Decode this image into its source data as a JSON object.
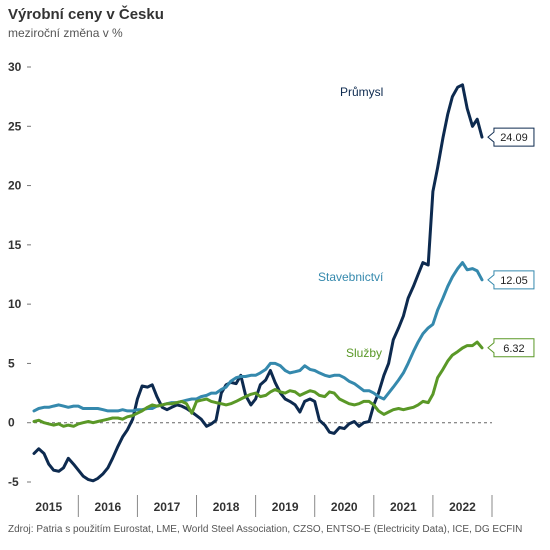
{
  "title": "Výrobní ceny v Česku",
  "subtitle": "meziroční změna v %",
  "source": "Zdroj: Patria s použitím Eurostat, LME, World Steel Association, CZSO, ENTSO-E (Electricity Data), ICE, DG ECFIN",
  "chart_data": {
    "type": "line",
    "title": "Výrobní ceny v Česku",
    "subtitle": "meziroční změna v %",
    "xlabel": "",
    "ylabel": "",
    "x_range": [
      2014.75,
      2022.5
    ],
    "ylim": [
      -5,
      30
    ],
    "y_ticks": [
      -5,
      0,
      5,
      10,
      15,
      20,
      25,
      30
    ],
    "x_ticks": [
      {
        "label": "2015",
        "pos": 2015.0
      },
      {
        "label": "2016",
        "pos": 2016.0
      },
      {
        "label": "2017",
        "pos": 2017.0
      },
      {
        "label": "2018",
        "pos": 2018.0
      },
      {
        "label": "2019",
        "pos": 2019.0
      },
      {
        "label": "2020",
        "pos": 2020.0
      },
      {
        "label": "2021",
        "pos": 2021.0
      },
      {
        "label": "2022",
        "pos": 2022.0
      }
    ],
    "zero_line": "dashed",
    "grid": false,
    "series": [
      {
        "name": "Průmysl",
        "color": "#0d2a4f",
        "end_label": "24.09",
        "points": [
          [
            2014.75,
            -2.6
          ],
          [
            2014.83,
            -2.2
          ],
          [
            2014.92,
            -2.6
          ],
          [
            2015.0,
            -3.5
          ],
          [
            2015.08,
            -4.0
          ],
          [
            2015.17,
            -4.1
          ],
          [
            2015.25,
            -3.8
          ],
          [
            2015.33,
            -3.0
          ],
          [
            2015.42,
            -3.5
          ],
          [
            2015.5,
            -4.0
          ],
          [
            2015.58,
            -4.5
          ],
          [
            2015.67,
            -4.8
          ],
          [
            2015.75,
            -4.9
          ],
          [
            2015.83,
            -4.7
          ],
          [
            2015.92,
            -4.3
          ],
          [
            2016.0,
            -3.8
          ],
          [
            2016.08,
            -3.0
          ],
          [
            2016.17,
            -2.0
          ],
          [
            2016.25,
            -1.2
          ],
          [
            2016.33,
            -0.6
          ],
          [
            2016.42,
            0.3
          ],
          [
            2016.5,
            2.0
          ],
          [
            2016.58,
            3.1
          ],
          [
            2016.67,
            3.0
          ],
          [
            2016.75,
            3.2
          ],
          [
            2016.83,
            2.2
          ],
          [
            2016.92,
            1.3
          ],
          [
            2017.0,
            1.1
          ],
          [
            2017.08,
            1.3
          ],
          [
            2017.17,
            1.5
          ],
          [
            2017.25,
            1.4
          ],
          [
            2017.33,
            1.2
          ],
          [
            2017.42,
            0.9
          ],
          [
            2017.5,
            0.6
          ],
          [
            2017.58,
            0.3
          ],
          [
            2017.67,
            -0.3
          ],
          [
            2017.75,
            -0.1
          ],
          [
            2017.83,
            0.2
          ],
          [
            2017.92,
            2.5
          ],
          [
            2018.0,
            3.2
          ],
          [
            2018.08,
            3.4
          ],
          [
            2018.17,
            3.3
          ],
          [
            2018.25,
            4.0
          ],
          [
            2018.33,
            2.3
          ],
          [
            2018.42,
            1.5
          ],
          [
            2018.5,
            2.0
          ],
          [
            2018.58,
            3.2
          ],
          [
            2018.67,
            3.6
          ],
          [
            2018.75,
            4.4
          ],
          [
            2018.83,
            3.4
          ],
          [
            2018.92,
            2.5
          ],
          [
            2019.0,
            2.0
          ],
          [
            2019.08,
            1.8
          ],
          [
            2019.17,
            1.5
          ],
          [
            2019.25,
            0.9
          ],
          [
            2019.33,
            1.8
          ],
          [
            2019.42,
            2.0
          ],
          [
            2019.5,
            1.8
          ],
          [
            2019.58,
            0.2
          ],
          [
            2019.67,
            -0.2
          ],
          [
            2019.75,
            -0.8
          ],
          [
            2019.83,
            -0.9
          ],
          [
            2019.92,
            -0.4
          ],
          [
            2020.0,
            -0.5
          ],
          [
            2020.08,
            -0.1
          ],
          [
            2020.17,
            0.1
          ],
          [
            2020.25,
            -0.3
          ],
          [
            2020.33,
            0.0
          ],
          [
            2020.42,
            0.1
          ],
          [
            2020.5,
            1.5
          ],
          [
            2020.58,
            2.5
          ],
          [
            2020.67,
            4.0
          ],
          [
            2020.75,
            5.0
          ],
          [
            2020.83,
            7.0
          ],
          [
            2020.92,
            8.0
          ],
          [
            2021.0,
            9.0
          ],
          [
            2021.08,
            10.5
          ],
          [
            2021.17,
            11.5
          ],
          [
            2021.25,
            12.5
          ],
          [
            2021.33,
            13.5
          ],
          [
            2021.42,
            13.3
          ],
          [
            2021.5,
            19.5
          ],
          [
            2021.58,
            21.5
          ],
          [
            2021.67,
            24.0
          ],
          [
            2021.75,
            26.0
          ],
          [
            2021.83,
            27.5
          ],
          [
            2021.92,
            28.3
          ],
          [
            2022.0,
            28.5
          ],
          [
            2022.08,
            26.5
          ],
          [
            2022.17,
            25.0
          ],
          [
            2022.25,
            25.6
          ],
          [
            2022.33,
            24.09
          ]
        ]
      },
      {
        "name": "Stavebnictví",
        "color": "#3589ad",
        "end_label": "12.05",
        "points": [
          [
            2014.75,
            1.0
          ],
          [
            2014.83,
            1.2
          ],
          [
            2014.92,
            1.3
          ],
          [
            2015.0,
            1.3
          ],
          [
            2015.08,
            1.4
          ],
          [
            2015.17,
            1.5
          ],
          [
            2015.25,
            1.4
          ],
          [
            2015.33,
            1.3
          ],
          [
            2015.42,
            1.4
          ],
          [
            2015.5,
            1.4
          ],
          [
            2015.58,
            1.2
          ],
          [
            2015.67,
            1.2
          ],
          [
            2015.75,
            1.2
          ],
          [
            2015.83,
            1.2
          ],
          [
            2015.92,
            1.1
          ],
          [
            2016.0,
            1.0
          ],
          [
            2016.08,
            1.0
          ],
          [
            2016.17,
            1.0
          ],
          [
            2016.25,
            1.1
          ],
          [
            2016.33,
            1.0
          ],
          [
            2016.42,
            1.0
          ],
          [
            2016.5,
            1.1
          ],
          [
            2016.58,
            1.1
          ],
          [
            2016.67,
            1.2
          ],
          [
            2016.75,
            1.2
          ],
          [
            2016.83,
            1.4
          ],
          [
            2016.92,
            1.5
          ],
          [
            2017.0,
            1.6
          ],
          [
            2017.08,
            1.7
          ],
          [
            2017.17,
            1.7
          ],
          [
            2017.25,
            1.8
          ],
          [
            2017.33,
            1.9
          ],
          [
            2017.42,
            2.0
          ],
          [
            2017.5,
            2.0
          ],
          [
            2017.58,
            2.2
          ],
          [
            2017.67,
            2.3
          ],
          [
            2017.75,
            2.5
          ],
          [
            2017.83,
            2.5
          ],
          [
            2017.92,
            2.8
          ],
          [
            2018.0,
            3.0
          ],
          [
            2018.08,
            3.5
          ],
          [
            2018.17,
            3.8
          ],
          [
            2018.25,
            3.9
          ],
          [
            2018.33,
            3.9
          ],
          [
            2018.42,
            4.0
          ],
          [
            2018.5,
            4.0
          ],
          [
            2018.58,
            4.2
          ],
          [
            2018.67,
            4.5
          ],
          [
            2018.75,
            5.0
          ],
          [
            2018.83,
            5.0
          ],
          [
            2018.92,
            4.8
          ],
          [
            2019.0,
            4.4
          ],
          [
            2019.08,
            4.2
          ],
          [
            2019.17,
            4.3
          ],
          [
            2019.25,
            4.4
          ],
          [
            2019.33,
            4.8
          ],
          [
            2019.42,
            4.5
          ],
          [
            2019.5,
            4.4
          ],
          [
            2019.58,
            4.2
          ],
          [
            2019.67,
            4.0
          ],
          [
            2019.75,
            3.9
          ],
          [
            2019.83,
            4.0
          ],
          [
            2019.92,
            4.0
          ],
          [
            2020.0,
            3.8
          ],
          [
            2020.08,
            3.5
          ],
          [
            2020.17,
            3.3
          ],
          [
            2020.25,
            3.0
          ],
          [
            2020.33,
            2.7
          ],
          [
            2020.42,
            2.7
          ],
          [
            2020.5,
            2.5
          ],
          [
            2020.58,
            2.2
          ],
          [
            2020.67,
            2.0
          ],
          [
            2020.75,
            2.5
          ],
          [
            2020.83,
            3.0
          ],
          [
            2020.92,
            3.6
          ],
          [
            2021.0,
            4.2
          ],
          [
            2021.08,
            5.0
          ],
          [
            2021.17,
            6.0
          ],
          [
            2021.25,
            6.8
          ],
          [
            2021.33,
            7.5
          ],
          [
            2021.42,
            8.0
          ],
          [
            2021.5,
            8.3
          ],
          [
            2021.58,
            9.5
          ],
          [
            2021.67,
            10.5
          ],
          [
            2021.75,
            11.5
          ],
          [
            2021.83,
            12.3
          ],
          [
            2021.92,
            13.0
          ],
          [
            2022.0,
            13.5
          ],
          [
            2022.08,
            12.9
          ],
          [
            2022.17,
            13.0
          ],
          [
            2022.25,
            12.8
          ],
          [
            2022.33,
            12.05
          ]
        ]
      },
      {
        "name": "Služby",
        "color": "#5a9827",
        "end_label": "6.32",
        "points": [
          [
            2014.75,
            0.1
          ],
          [
            2014.83,
            0.2
          ],
          [
            2014.92,
            0.0
          ],
          [
            2015.0,
            -0.1
          ],
          [
            2015.08,
            -0.2
          ],
          [
            2015.17,
            -0.1
          ],
          [
            2015.25,
            -0.3
          ],
          [
            2015.33,
            -0.2
          ],
          [
            2015.42,
            -0.3
          ],
          [
            2015.5,
            -0.1
          ],
          [
            2015.58,
            0.0
          ],
          [
            2015.67,
            0.1
          ],
          [
            2015.75,
            0.0
          ],
          [
            2015.83,
            0.1
          ],
          [
            2015.92,
            0.2
          ],
          [
            2016.0,
            0.3
          ],
          [
            2016.08,
            0.4
          ],
          [
            2016.17,
            0.4
          ],
          [
            2016.25,
            0.3
          ],
          [
            2016.33,
            0.5
          ],
          [
            2016.42,
            0.6
          ],
          [
            2016.5,
            0.8
          ],
          [
            2016.58,
            1.0
          ],
          [
            2016.67,
            1.3
          ],
          [
            2016.75,
            1.5
          ],
          [
            2016.83,
            1.4
          ],
          [
            2016.92,
            1.5
          ],
          [
            2017.0,
            1.6
          ],
          [
            2017.08,
            1.6
          ],
          [
            2017.17,
            1.7
          ],
          [
            2017.25,
            1.8
          ],
          [
            2017.33,
            1.6
          ],
          [
            2017.42,
            0.8
          ],
          [
            2017.5,
            1.8
          ],
          [
            2017.58,
            1.9
          ],
          [
            2017.67,
            2.0
          ],
          [
            2017.75,
            1.8
          ],
          [
            2017.83,
            1.7
          ],
          [
            2017.92,
            1.6
          ],
          [
            2018.0,
            1.5
          ],
          [
            2018.08,
            1.6
          ],
          [
            2018.17,
            1.8
          ],
          [
            2018.25,
            2.0
          ],
          [
            2018.33,
            2.2
          ],
          [
            2018.42,
            2.4
          ],
          [
            2018.5,
            2.5
          ],
          [
            2018.58,
            2.2
          ],
          [
            2018.67,
            2.3
          ],
          [
            2018.75,
            2.6
          ],
          [
            2018.83,
            2.8
          ],
          [
            2018.92,
            2.6
          ],
          [
            2019.0,
            2.5
          ],
          [
            2019.08,
            2.7
          ],
          [
            2019.17,
            2.6
          ],
          [
            2019.25,
            2.3
          ],
          [
            2019.33,
            2.5
          ],
          [
            2019.42,
            2.7
          ],
          [
            2019.5,
            2.6
          ],
          [
            2019.58,
            2.3
          ],
          [
            2019.67,
            2.2
          ],
          [
            2019.75,
            2.6
          ],
          [
            2019.83,
            2.5
          ],
          [
            2019.92,
            2.0
          ],
          [
            2020.0,
            1.8
          ],
          [
            2020.08,
            1.6
          ],
          [
            2020.17,
            1.5
          ],
          [
            2020.25,
            1.6
          ],
          [
            2020.33,
            1.8
          ],
          [
            2020.42,
            1.8
          ],
          [
            2020.5,
            1.5
          ],
          [
            2020.58,
            1.0
          ],
          [
            2020.67,
            0.7
          ],
          [
            2020.75,
            0.9
          ],
          [
            2020.83,
            1.1
          ],
          [
            2020.92,
            1.2
          ],
          [
            2021.0,
            1.1
          ],
          [
            2021.08,
            1.2
          ],
          [
            2021.17,
            1.3
          ],
          [
            2021.25,
            1.5
          ],
          [
            2021.33,
            1.8
          ],
          [
            2021.42,
            1.7
          ],
          [
            2021.5,
            2.4
          ],
          [
            2021.58,
            3.8
          ],
          [
            2021.67,
            4.5
          ],
          [
            2021.75,
            5.2
          ],
          [
            2021.83,
            5.7
          ],
          [
            2021.92,
            6.0
          ],
          [
            2022.0,
            6.3
          ],
          [
            2022.08,
            6.5
          ],
          [
            2022.17,
            6.5
          ],
          [
            2022.25,
            6.8
          ],
          [
            2022.33,
            6.32
          ]
        ]
      }
    ]
  }
}
